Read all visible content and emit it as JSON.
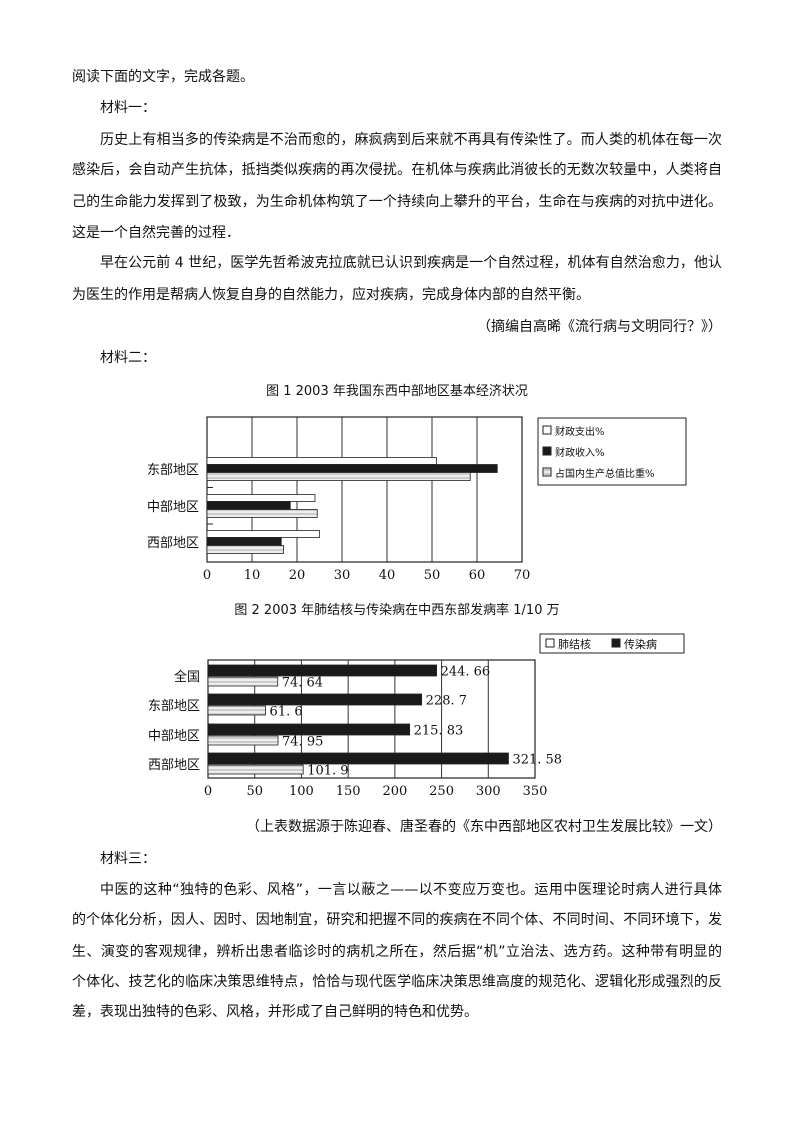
{
  "intro": "阅读下面的文字，完成各题。",
  "material1": {
    "heading": "材料一：",
    "lines": [
      "历史上有相当多的传染病是不治而愈的，麻疯病到后来就不再具有传染性了。而人类的机体在每一次",
      "感染后，会自动产生抗体，抵挡类似疾病的再次侵扰。在机体与疾病此消彼长的无数次较量中，人类将自",
      "己的生命能力发挥到了极致，为生命机体构筑了一个持续向上攀升的平台，生命在与疾病的对抗中进化。",
      "这是一个自然完善的过程．",
      "早在公元前 4 世纪，医学先哲希波克拉底就已认识到疾病是一个自然过程，机体有自然治愈力，他认",
      "为医生的作用是帮病人恢复自身的自然能力，应对疾病，完成身体内部的自然平衡。"
    ],
    "source": "（摘编自高晞《流行病与文明同行？》）"
  },
  "material2": {
    "heading": "材料二：",
    "source": "（上表数据源于陈迎春、唐圣春的《东中西部地区农村卫生发展比较》一文）"
  },
  "chart_data": [
    {
      "type": "bar",
      "orientation": "horizontal",
      "title": "图 1  2003 年我国东西中部地区基本经济状况",
      "categories": [
        "东部地区",
        "中部地区",
        "西部地区"
      ],
      "series": [
        {
          "name": "财政支出%",
          "values": [
            51,
            24,
            25
          ],
          "fill": "white"
        },
        {
          "name": "财政收入%",
          "values": [
            64.5,
            18.5,
            16.5
          ],
          "fill": "black"
        },
        {
          "name": "占国内生产总值比重%",
          "values": [
            58.5,
            24.5,
            17
          ],
          "fill": "hatched-grey"
        }
      ],
      "xlim": [
        0,
        70
      ],
      "xticks": [
        0,
        10,
        20,
        30,
        40,
        50,
        60,
        70
      ],
      "grid": true,
      "legend": "right"
    },
    {
      "type": "bar",
      "orientation": "horizontal",
      "title": "图 2   2003 年肺结核与传染病在中西东部发病率 1/10 万",
      "categories": [
        "全国",
        "东部地区",
        "中部地区",
        "西部地区"
      ],
      "series": [
        {
          "name": "传染病",
          "values": [
            244.66,
            228.7,
            215.83,
            321.58
          ],
          "labels": [
            "244. 66",
            "228. 7",
            "215. 83",
            "321. 58"
          ],
          "fill": "black"
        },
        {
          "name": "肺结核",
          "values": [
            74.64,
            61.6,
            74.95,
            101.9
          ],
          "labels": [
            "74. 64",
            "61. 6",
            "74. 95",
            "101. 9"
          ],
          "fill": "hatched-grey"
        }
      ],
      "legend_order": [
        "肺结核",
        "传染病"
      ],
      "xlim": [
        0,
        350
      ],
      "xticks": [
        0,
        50,
        100,
        150,
        200,
        250,
        300,
        350
      ],
      "grid": true,
      "legend": "top-right"
    }
  ],
  "material3": {
    "heading": "材料三：",
    "lines": [
      "中医的这种“独特的色彩、风格”，一言以蔽之——以不变应万变也。运用中医理论时病人进行具体",
      "的个体化分析，因人、因时、因地制宜，研究和把握不同的疾病在不同个体、不同时间、不同环境下，发",
      "生、演变的客观规律，辨析出患者临诊时的病机之所在，然后据“机”立治法、选方药。这种带有明显的",
      "个体化、技艺化的临床决策思维特点，恰恰与现代医学临床决策思维高度的规范化、逻辑化形成强烈的反",
      "差，表现出独特的色彩、风格，并形成了自己鲜明的特色和优势。"
    ]
  }
}
